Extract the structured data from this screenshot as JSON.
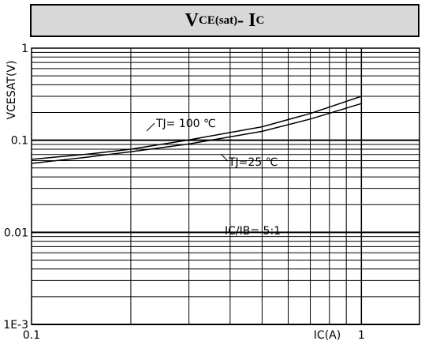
{
  "title": {
    "main": "V",
    "sub1": "CE(sat)",
    "dash": "- I",
    "sub2": "C"
  },
  "chart_data": {
    "type": "line",
    "title": "VCE(sat)- IC",
    "xlabel": "IC(A)",
    "ylabel": "VCESAT(V)",
    "xscale": "log",
    "yscale": "log",
    "xlim": [
      0.1,
      1.5
    ],
    "ylim": [
      0.001,
      1
    ],
    "grid": true,
    "x_ticks": [
      "0.1",
      "1"
    ],
    "y_ticks": [
      "1E-3",
      "0.01",
      "0.1",
      "1"
    ],
    "series": [
      {
        "name": "TJ= 100 ℃",
        "x": [
          0.1,
          0.15,
          0.2,
          0.3,
          0.5,
          0.7,
          1.0
        ],
        "y": [
          0.062,
          0.071,
          0.08,
          0.101,
          0.14,
          0.195,
          0.3
        ]
      },
      {
        "name": "TJ=25 ℃",
        "x": [
          0.1,
          0.15,
          0.2,
          0.3,
          0.5,
          0.7,
          1.0
        ],
        "y": [
          0.056,
          0.066,
          0.075,
          0.091,
          0.125,
          0.17,
          0.25
        ]
      }
    ],
    "annotations": [
      {
        "text": "TJ= 100 ℃",
        "target": "series-0"
      },
      {
        "text": "TJ=25 ℃",
        "target": "series-1"
      },
      {
        "text": "IC/IB= 5:1"
      }
    ]
  }
}
